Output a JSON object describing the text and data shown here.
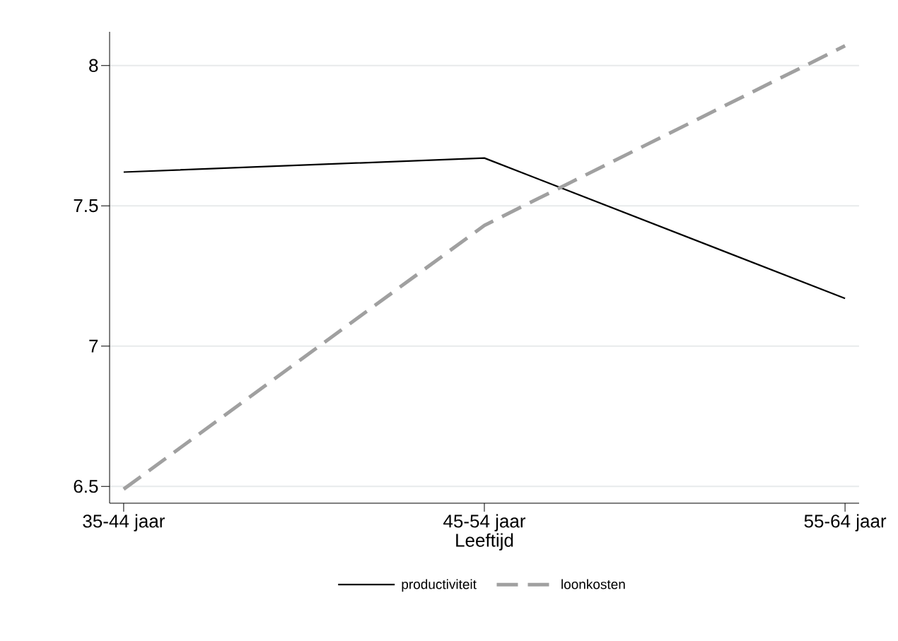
{
  "chart_data": {
    "type": "line",
    "xlabel": "Leeftijd",
    "categories": [
      "35-44 jaar",
      "45-54 jaar",
      "55-64 jaar"
    ],
    "series": [
      {
        "name": "productiviteit",
        "color": "#000000",
        "line_style": "solid",
        "values": [
          7.62,
          7.67,
          7.17
        ]
      },
      {
        "name": "loonkosten",
        "color": "#a0a0a0",
        "line_style": "dashed",
        "values": [
          6.49,
          7.43,
          8.07
        ]
      }
    ],
    "ylim": [
      6.44,
      8.12
    ],
    "yticks": [
      6.5,
      7,
      7.5,
      8
    ],
    "grid": "y",
    "legend": "bottom",
    "marker": "none"
  }
}
